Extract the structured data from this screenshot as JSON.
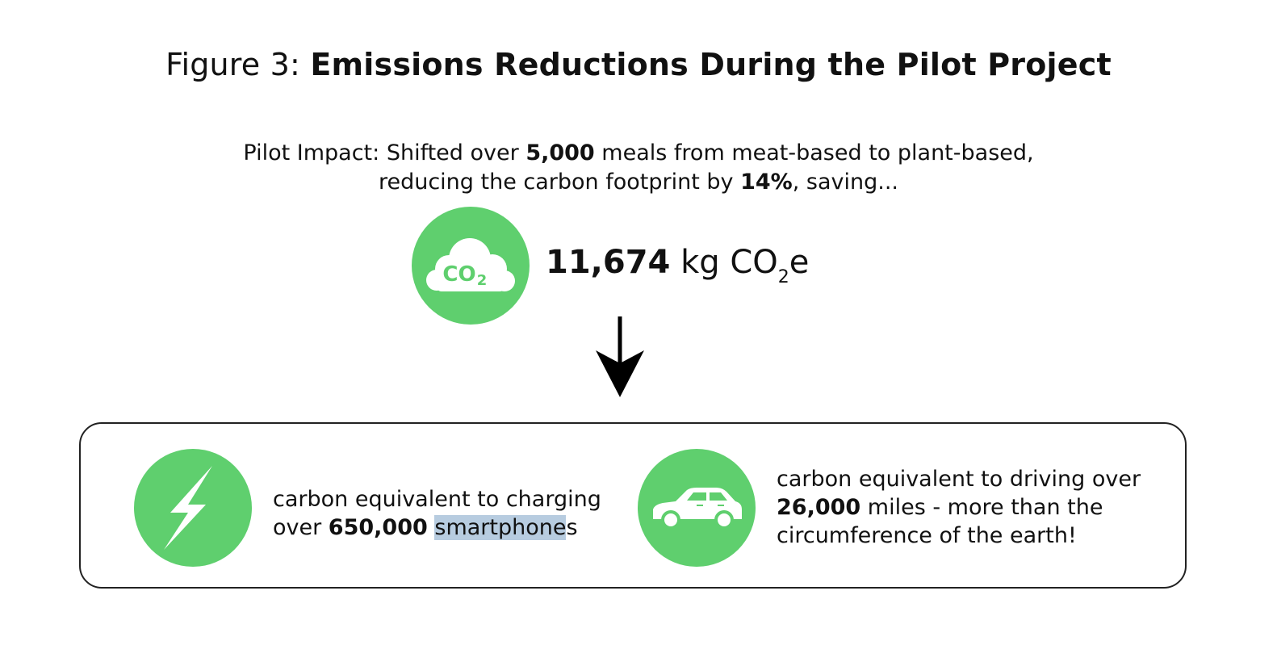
{
  "title": {
    "prefix": "Figure 3: ",
    "main": "Emissions Reductions During the Pilot Project"
  },
  "intro": {
    "line1_a": "Pilot Impact: Shifted over ",
    "line1_meals": "5,000",
    "line1_b": " meals from meat-based to plant-based,",
    "line2_a": "reducing the carbon footprint by ",
    "line2_pct": "14%",
    "line2_b": ", saving..."
  },
  "co2_icon": {
    "label_main": "CO",
    "label_sub": "2"
  },
  "total": {
    "value": "11,674",
    "unit_a": " kg CO",
    "unit_sub": "2",
    "unit_b": "e"
  },
  "equivalents": {
    "phones": {
      "line1": "carbon equivalent to charging",
      "line2_a": "over ",
      "value": "650,000",
      "line2_b": " ",
      "highlighted": "smartphone",
      "line2_c": "s"
    },
    "miles": {
      "line1": "carbon equivalent to driving over",
      "value": "26,000",
      "line2_b": " miles - more than the",
      "line3": "circumference of the earth!"
    }
  },
  "icons": {
    "co2": "co2-cloud-icon",
    "arrow": "arrow-down-icon",
    "bolt": "lightning-bolt-icon",
    "car": "car-icon"
  },
  "colors": {
    "accent_green": "#5fcf6e",
    "text": "#111111",
    "highlight": "#b7cce0"
  }
}
